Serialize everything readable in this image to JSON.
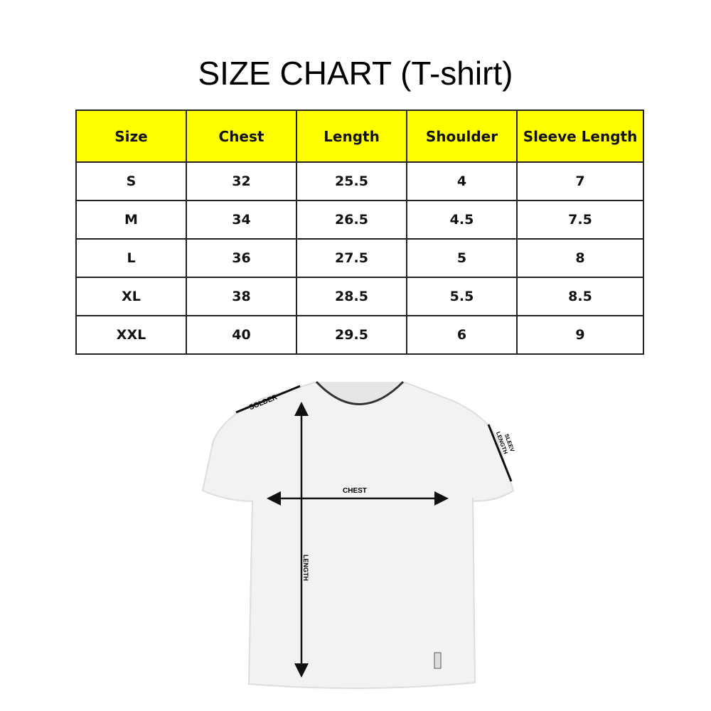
{
  "title": "SIZE CHART (T-shirt)",
  "table": {
    "header_color": "#ffff00",
    "headers": [
      "Size",
      "Chest",
      "Length",
      "Shoulder",
      "Sleeve Length"
    ],
    "rows": [
      [
        "S",
        "32",
        "25.5",
        "4",
        "7"
      ],
      [
        "M",
        "34",
        "26.5",
        "4.5",
        "7.5"
      ],
      [
        "L",
        "36",
        "27.5",
        "5",
        "8"
      ],
      [
        "XL",
        "38",
        "28.5",
        "5.5",
        "8.5"
      ],
      [
        "XXL",
        "40",
        "29.5",
        "6",
        "9"
      ]
    ]
  },
  "diagram": {
    "shoulder_label": "SOLDER",
    "sleeve_label_1": "SLEEV",
    "sleeve_label_2": "LENGTH",
    "chest_label": "CHEST",
    "length_label": "LENGTH"
  }
}
